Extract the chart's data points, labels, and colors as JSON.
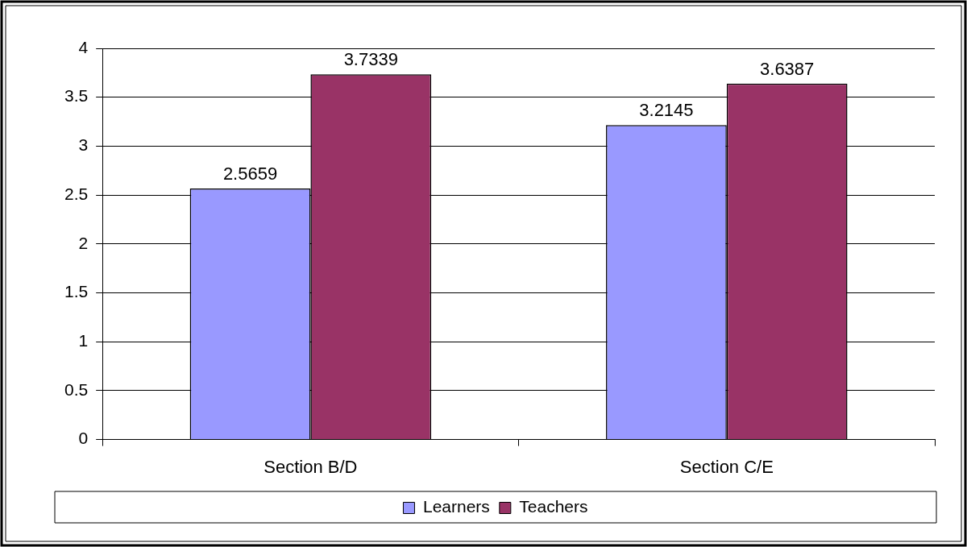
{
  "chart_data": {
    "type": "bar",
    "categories": [
      "Section B/D",
      "Section C/E"
    ],
    "series": [
      {
        "name": "Learners",
        "color": "#9999ff",
        "values": [
          2.5659,
          3.2145
        ]
      },
      {
        "name": "Teachers",
        "color": "#993366",
        "values": [
          3.7339,
          3.6387
        ]
      }
    ],
    "ylim": [
      0,
      4
    ],
    "yticks": [
      0,
      0.5,
      1,
      1.5,
      2,
      2.5,
      3,
      3.5,
      4
    ],
    "grid": "y",
    "legend": "bottom",
    "data_labels": true
  }
}
